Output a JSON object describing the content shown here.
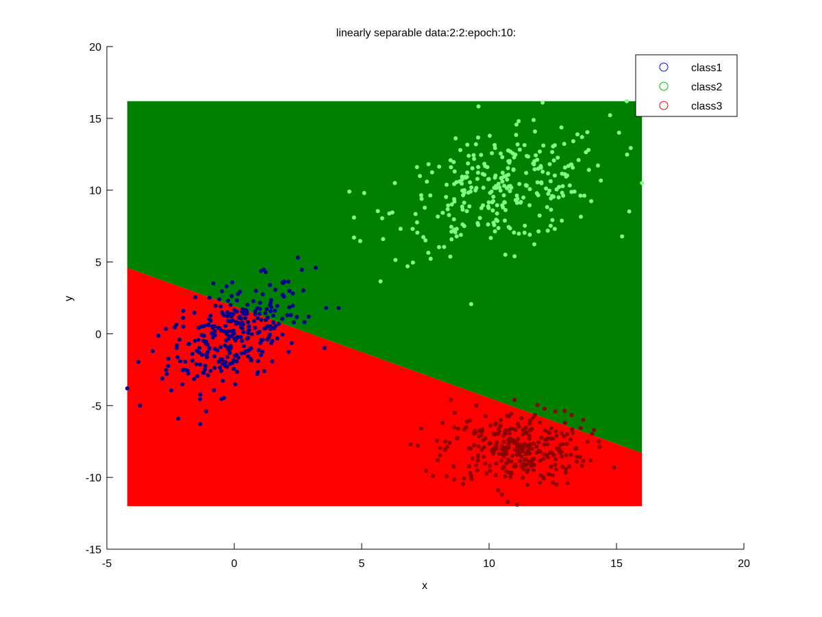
{
  "chart_data": {
    "type": "scatter",
    "title": "linearly separable data:2:2:epoch:10:",
    "xlabel": "x",
    "ylabel": "y",
    "xlim": [
      -5,
      20
    ],
    "ylim": [
      -15,
      20
    ],
    "xticks": [
      "-5",
      "0",
      "5",
      "10",
      "15",
      "20"
    ],
    "yticks": [
      "-15",
      "-10",
      "-5",
      "0",
      "5",
      "10",
      "15",
      "20"
    ],
    "grid": false,
    "legend_position": "top-right",
    "decision_regions": {
      "x_range": [
        -4.2,
        16
      ],
      "y_range": [
        -12,
        16.2
      ],
      "boundary_line": {
        "x": [
          -4.2,
          16
        ],
        "y": [
          4.6,
          -8.3
        ]
      },
      "above_color": "#007f00",
      "below_color": "#ff0000",
      "above_label": "class2",
      "below_label": "class3"
    },
    "series": [
      {
        "name": "class1",
        "legend_color": "#0000ff",
        "point_color": "#00008b",
        "center": [
          0,
          0
        ],
        "spread": [
          1.3,
          1.8
        ],
        "n": 300,
        "x": [
          -4.2,
          -3.7,
          -3.2,
          -2.2,
          -0.3,
          2.5,
          3.2,
          4.1,
          -2.0,
          0.9,
          1.4,
          -1.1
        ],
        "y": [
          -3.8,
          -5.0,
          -1.2,
          -5.9,
          3.3,
          5.3,
          4.6,
          1.8,
          1.6,
          -2.8,
          3.4,
          -5.4
        ]
      },
      {
        "name": "class2",
        "legend_color": "#00bf00",
        "point_color": "#80ff80",
        "center": [
          10.5,
          10
        ],
        "spread": [
          2.1,
          2.0
        ],
        "n": 300,
        "x": [
          4.7,
          4.7,
          5.1,
          6.3,
          6.8,
          7.0,
          12.1,
          15.4,
          15.1,
          16.0,
          11.0,
          13.9
        ],
        "y": [
          8.1,
          6.7,
          9.8,
          10.5,
          4.7,
          7.3,
          16.1,
          16.2,
          14.0,
          10.5,
          5.4,
          12.8
        ]
      },
      {
        "name": "class3",
        "legend_color": "#ff0000",
        "point_color": "#8b0000",
        "center": [
          11,
          -8
        ],
        "spread": [
          1.4,
          1.3
        ],
        "n": 300,
        "x": [
          7.2,
          7.8,
          8.5,
          11.0,
          14.9,
          13.7,
          10.5,
          12.6,
          11.1,
          9.5
        ],
        "y": [
          -7.8,
          -9.9,
          -4.6,
          -4.6,
          -9.3,
          -6.0,
          -11.2,
          -5.4,
          -11.9,
          -5.0
        ]
      }
    ]
  }
}
